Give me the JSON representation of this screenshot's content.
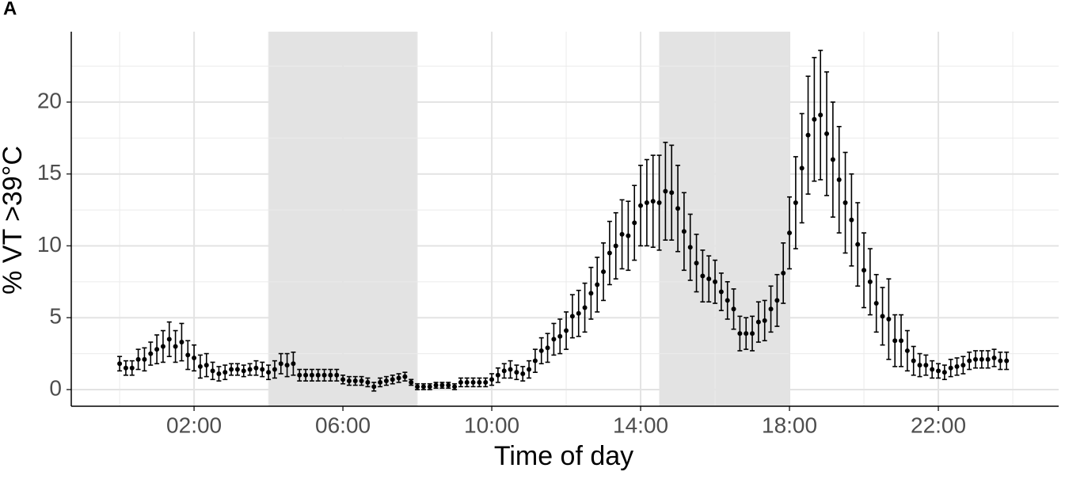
{
  "chart_data": {
    "type": "errorbar",
    "panel_label": "A",
    "xlabel": "Time of day",
    "ylabel": "% VT >39°C",
    "x": [
      0,
      10,
      20,
      30,
      40,
      50,
      60,
      70,
      80,
      90,
      100,
      110,
      120,
      130,
      140,
      150,
      160,
      170,
      180,
      190,
      200,
      210,
      220,
      230,
      240,
      250,
      260,
      270,
      280,
      290,
      300,
      310,
      320,
      330,
      340,
      350,
      360,
      370,
      380,
      390,
      400,
      410,
      420,
      430,
      440,
      450,
      460,
      470,
      480,
      490,
      500,
      510,
      520,
      530,
      540,
      550,
      560,
      570,
      580,
      590,
      600,
      610,
      620,
      630,
      640,
      650,
      660,
      670,
      680,
      690,
      700,
      710,
      720,
      730,
      740,
      750,
      760,
      770,
      780,
      790,
      800,
      810,
      820,
      830,
      840,
      850,
      860,
      870,
      880,
      890,
      900,
      910,
      920,
      930,
      940,
      950,
      960,
      970,
      980,
      990,
      1000,
      1010,
      1020,
      1030,
      1040,
      1050,
      1060,
      1070,
      1080,
      1090,
      1100,
      1110,
      1120,
      1130,
      1140,
      1150,
      1160,
      1170,
      1180,
      1190,
      1200,
      1210,
      1220,
      1230,
      1240,
      1250,
      1260,
      1270,
      1280,
      1290,
      1300,
      1310,
      1320,
      1330,
      1340,
      1350,
      1360,
      1370,
      1380,
      1390,
      1400,
      1410,
      1420,
      1430
    ],
    "values": [
      1.8,
      1.5,
      1.5,
      2.1,
      2.1,
      2.5,
      2.8,
      3.0,
      3.5,
      3.0,
      3.3,
      2.4,
      2.2,
      1.6,
      1.7,
      1.3,
      1.1,
      1.2,
      1.4,
      1.4,
      1.3,
      1.4,
      1.5,
      1.4,
      1.2,
      1.4,
      1.8,
      1.7,
      1.8,
      1.0,
      1.0,
      1.0,
      1.0,
      1.0,
      1.0,
      1.0,
      0.7,
      0.6,
      0.6,
      0.6,
      0.5,
      0.2,
      0.5,
      0.6,
      0.7,
      0.8,
      0.9,
      0.5,
      0.2,
      0.2,
      0.2,
      0.3,
      0.3,
      0.3,
      0.2,
      0.5,
      0.5,
      0.5,
      0.5,
      0.5,
      0.7,
      1.0,
      1.3,
      1.4,
      1.2,
      1.1,
      1.4,
      2.0,
      2.7,
      2.9,
      3.5,
      3.7,
      4.1,
      5.1,
      5.3,
      5.7,
      6.7,
      7.3,
      8.2,
      9.5,
      10.0,
      10.8,
      10.7,
      11.6,
      12.8,
      13.0,
      13.1,
      13.0,
      13.8,
      13.7,
      12.6,
      11.0,
      9.9,
      8.8,
      7.9,
      7.7,
      7.5,
      6.8,
      6.2,
      5.6,
      3.9,
      3.9,
      3.9,
      4.7,
      4.8,
      5.6,
      6.2,
      8.1,
      10.9,
      13.0,
      15.4,
      17.7,
      18.8,
      19.1,
      17.8,
      16.0,
      14.6,
      13.0,
      11.8,
      10.1,
      8.3,
      7.5,
      6.0,
      5.1,
      4.9,
      3.4,
      3.4,
      2.7,
      2.0,
      1.7,
      1.7,
      1.4,
      1.3,
      1.2,
      1.5,
      1.6,
      1.7,
      2.0,
      2.1,
      2.1,
      2.1,
      2.2,
      2.0,
      2.0
    ],
    "errors": [
      0.5,
      0.5,
      0.5,
      0.7,
      0.8,
      0.8,
      1.0,
      1.1,
      1.2,
      1.1,
      1.3,
      1.0,
      0.9,
      0.8,
      0.8,
      0.6,
      0.5,
      0.5,
      0.4,
      0.4,
      0.4,
      0.4,
      0.5,
      0.5,
      0.5,
      0.6,
      0.7,
      0.8,
      0.8,
      0.4,
      0.4,
      0.4,
      0.4,
      0.4,
      0.4,
      0.4,
      0.3,
      0.3,
      0.3,
      0.3,
      0.3,
      0.3,
      0.3,
      0.3,
      0.3,
      0.3,
      0.3,
      0.2,
      0.2,
      0.2,
      0.2,
      0.2,
      0.2,
      0.2,
      0.2,
      0.3,
      0.3,
      0.3,
      0.3,
      0.3,
      0.4,
      0.5,
      0.5,
      0.6,
      0.5,
      0.5,
      0.6,
      0.8,
      0.9,
      1.0,
      1.1,
      1.2,
      1.3,
      1.5,
      1.6,
      1.7,
      1.8,
      1.9,
      2.0,
      2.2,
      2.3,
      2.4,
      2.4,
      2.6,
      2.8,
      3.0,
      3.2,
      3.3,
      3.4,
      3.3,
      3.0,
      2.7,
      2.3,
      2.0,
      1.8,
      1.6,
      1.5,
      1.3,
      1.3,
      1.4,
      1.2,
      1.1,
      1.2,
      1.4,
      1.4,
      1.6,
      1.8,
      2.1,
      2.5,
      3.2,
      3.8,
      4.1,
      4.3,
      4.5,
      4.3,
      4.0,
      3.7,
      3.5,
      3.2,
      2.9,
      2.6,
      2.3,
      2.0,
      2.0,
      2.8,
      1.8,
      1.8,
      1.4,
      1.0,
      0.8,
      0.7,
      0.6,
      0.5,
      0.5,
      0.6,
      0.6,
      0.6,
      0.6,
      0.6,
      0.6,
      0.6,
      0.6,
      0.6,
      0.6
    ],
    "color": "#000000",
    "shaded_ranges": [
      [
        240,
        480
      ],
      [
        870,
        1080
      ]
    ],
    "shade_color": "#e3e3e3",
    "xlim": [
      -78,
      1514
    ],
    "xticks": [
      {
        "value": 120,
        "label": "02:00"
      },
      {
        "value": 360,
        "label": "06:00"
      },
      {
        "value": 600,
        "label": "10:00"
      },
      {
        "value": 840,
        "label": "14:00"
      },
      {
        "value": 1080,
        "label": "18:00"
      },
      {
        "value": 1320,
        "label": "22:00"
      }
    ],
    "x_minor_ticks": [
      0,
      240,
      480,
      720,
      960,
      1200,
      1440
    ],
    "ylim": [
      -1.16,
      24.9
    ],
    "yticks": [
      0,
      5,
      10,
      15,
      20
    ],
    "y_minor_ticks": [
      2.5,
      7.5,
      12.5,
      17.5,
      22.5
    ],
    "grid": true
  }
}
